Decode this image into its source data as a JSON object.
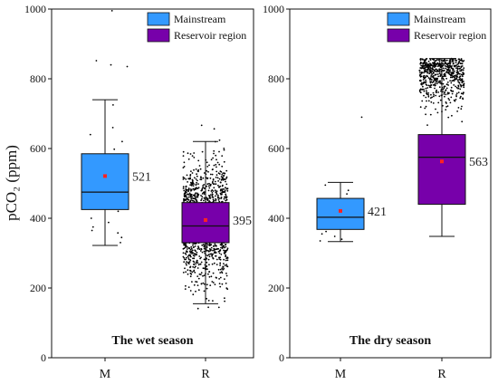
{
  "colors": {
    "mainstream": "#3399ff",
    "reservoir": "#7700aa",
    "mean_marker": "#ff2222",
    "outline": "#111111"
  },
  "chart_data": [
    {
      "type": "box",
      "title": "The wet season",
      "ylabel": "pCO₂ (ppm)",
      "ylim": [
        0,
        1000
      ],
      "yticks": [
        0,
        200,
        400,
        600,
        800,
        1000
      ],
      "categories": [
        "M",
        "R"
      ],
      "legend": {
        "placement": "top-right",
        "entries": [
          {
            "name": "Mainstream",
            "color": "#3399ff"
          },
          {
            "name": "Reservoir region",
            "color": "#7700aa"
          }
        ]
      },
      "series": [
        {
          "name": "Mainstream",
          "category": "M",
          "color": "#3399ff",
          "q1": 425,
          "median": 475,
          "q3": 585,
          "whisker_low": 322,
          "whisker_high": 740,
          "mean": 521,
          "mean_label": "521",
          "points": [
            995,
            852,
            840,
            835,
            725,
            660,
            640,
            620,
            598,
            545,
            480,
            440,
            420,
            400,
            388,
            375,
            365,
            358,
            345,
            330
          ]
        },
        {
          "name": "Reservoir region",
          "category": "R",
          "color": "#7700aa",
          "q1": 330,
          "median": 378,
          "q3": 445,
          "whisker_low": 155,
          "whisker_high": 620,
          "mean": 395,
          "mean_label": "395",
          "points_count": 1400
        }
      ]
    },
    {
      "type": "box",
      "title": "The dry season",
      "ylim": [
        0,
        1000
      ],
      "yticks": [
        0,
        200,
        400,
        600,
        800,
        1000
      ],
      "categories": [
        "M",
        "R"
      ],
      "legend": {
        "placement": "top-right",
        "entries": [
          {
            "name": "Mainstream",
            "color": "#3399ff"
          },
          {
            "name": "Reservoir region",
            "color": "#7700aa"
          }
        ]
      },
      "series": [
        {
          "name": "Mainstream",
          "category": "M",
          "color": "#3399ff",
          "q1": 368,
          "median": 403,
          "q3": 457,
          "whisker_low": 333,
          "whisker_high": 503,
          "mean": 421,
          "mean_label": "421",
          "points": [
            690,
            495,
            480,
            470,
            455,
            440,
            430,
            420,
            410,
            400,
            395,
            385,
            380,
            372,
            362,
            355,
            348,
            340,
            335
          ]
        },
        {
          "name": "Reservoir region",
          "category": "R",
          "color": "#7700aa",
          "q1": 440,
          "median": 575,
          "q3": 640,
          "whisker_low": 348,
          "whisker_high": 858,
          "mean": 563,
          "mean_label": "563",
          "points_count": 620
        }
      ]
    }
  ]
}
